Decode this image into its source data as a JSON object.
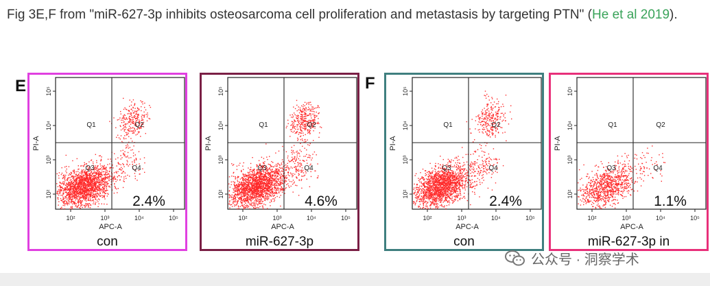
{
  "caption": {
    "text_before": "Fig 3E,F from \"miR-627-3p inhibits osteosarcoma cell proliferation and metastasis by targeting PTN\" (",
    "link_text": "He et al 2019",
    "text_after": ")."
  },
  "panel_letters": [
    "E",
    "F"
  ],
  "axis": {
    "y_label": "PI-A",
    "x_label": "APC-A",
    "x_ticks": [
      "10²",
      "10³",
      "10⁴",
      "10⁵"
    ],
    "y_ticks": [
      "10²",
      "10³",
      "10⁴",
      "10⁵"
    ],
    "quadrants": [
      "Q1",
      "Q2",
      "Q3",
      "Q4"
    ]
  },
  "plots": [
    {
      "panel": "E",
      "label": "con",
      "percent": "2.4%",
      "border_color": "#e040e0"
    },
    {
      "panel": "E",
      "label": "miR-627-3p",
      "percent": "4.6%",
      "border_color": "#7a1f45"
    },
    {
      "panel": "F",
      "label": "con",
      "percent": "2.4%",
      "border_color": "#3f7f7f"
    },
    {
      "panel": "F",
      "label": "miR-627-3p in",
      "percent": "1.1%",
      "border_color": "#e8307a"
    }
  ],
  "watermark": {
    "text": "公众号 · 洞察学术",
    "icon": "wechat-icon"
  },
  "colors": {
    "dots": "#ff2a2a",
    "link": "#3aa35a"
  }
}
